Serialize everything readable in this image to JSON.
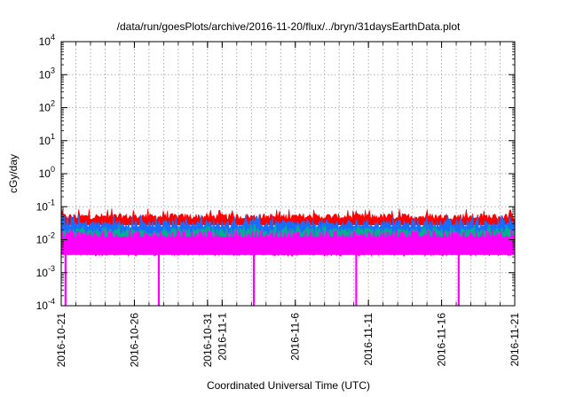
{
  "chart_data": {
    "type": "area",
    "title": "/data/run/goesPlots/archive/2016-11-20/flux/../bryn/31daysEarthData.plot",
    "xlabel": "Coordinated Universal Time (UTC)",
    "ylabel": "cGy/day",
    "yscale": "log",
    "ylim": [
      0.0001,
      10000
    ],
    "xlim": [
      "2016-10-21",
      "2016-11-21"
    ],
    "grid": true,
    "y_ticks": [
      {
        "base": "10",
        "exp": "-4"
      },
      {
        "base": "10",
        "exp": "-3"
      },
      {
        "base": "10",
        "exp": "-2"
      },
      {
        "base": "10",
        "exp": "-1"
      },
      {
        "base": "10",
        "exp": "0"
      },
      {
        "base": "10",
        "exp": "1"
      },
      {
        "base": "10",
        "exp": "2"
      },
      {
        "base": "10",
        "exp": "3"
      },
      {
        "base": "10",
        "exp": "4"
      }
    ],
    "x_ticks": [
      {
        "date": "2016-10-21",
        "label": "2016-10-21"
      },
      {
        "date": "2016-10-26",
        "label": "2016-10-26"
      },
      {
        "date": "2016-10-31",
        "label": "2016-10-31"
      },
      {
        "date": "2016-11-01",
        "label": "2016-11-1"
      },
      {
        "date": "2016-11-06",
        "label": "2016-11-6"
      },
      {
        "date": "2016-11-11",
        "label": "2016-11-11"
      },
      {
        "date": "2016-11-16",
        "label": "2016-11-16"
      },
      {
        "date": "2016-11-21",
        "label": "2016-11-21"
      }
    ],
    "series": [
      {
        "color": "#ff0000",
        "typical_value": 0.05,
        "min_value": 0.04,
        "max_value": 0.09
      },
      {
        "color": "#1a6cff",
        "typical_value": 0.03,
        "min_value": 0.02,
        "max_value": 0.06
      },
      {
        "color": "#00b090",
        "typical_value": 0.018,
        "min_value": 0.012,
        "max_value": 0.03
      },
      {
        "color": "#ff00ff",
        "typical_value": 0.012,
        "min_value": 0.0035,
        "max_value": 0.02
      }
    ],
    "dips": [
      {
        "date": "2016-10-21 07:00",
        "value": 0.0001
      },
      {
        "date": "2016-10-27 16:00",
        "value": 0.0001
      },
      {
        "date": "2016-11-03 04:00",
        "value": 0.0001
      },
      {
        "date": "2016-11-10 04:00",
        "value": 0.0001
      },
      {
        "date": "2016-11-17 04:00",
        "value": 0.0001
      }
    ]
  }
}
